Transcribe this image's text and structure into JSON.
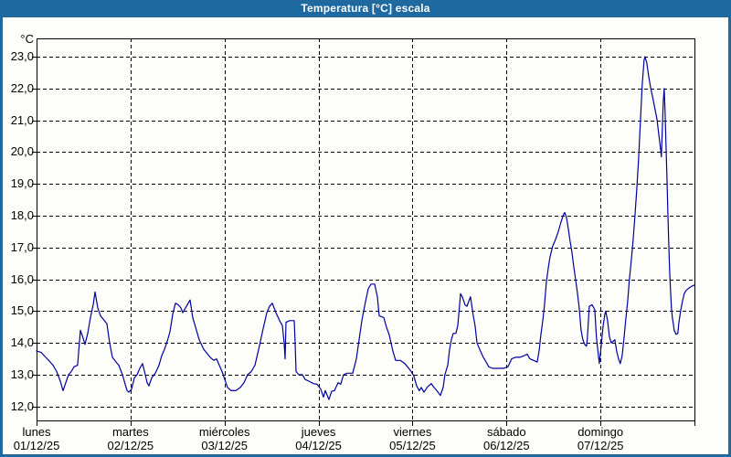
{
  "window": {
    "title": "Temperatura [°C] escala",
    "titlebar_color": "#1e69a0",
    "border_color": "#1e69a0",
    "plot_background": "#fdfdfa",
    "axis_color": "#000000"
  },
  "chart_data": {
    "type": "line",
    "title": "Temperatura [°C] escala",
    "ylabel_unit": "°C",
    "ylim": [
      12.0,
      23.0
    ],
    "y_tick_step": 1.0,
    "y_tick_labels": [
      "23,0",
      "22,0",
      "21,0",
      "20,0",
      "19,0",
      "18,0",
      "17,0",
      "16,0",
      "15,0",
      "14,0",
      "13,0",
      "12,0"
    ],
    "x_range_days": [
      0,
      7
    ],
    "grid": "dashed",
    "legend": "none",
    "x_axis_days": [
      {
        "day": "lunes",
        "date": "01/12/25"
      },
      {
        "day": "martes",
        "date": "02/12/25"
      },
      {
        "day": "miércoles",
        "date": "03/12/25"
      },
      {
        "day": "jueves",
        "date": "04/12/25"
      },
      {
        "day": "viernes",
        "date": "05/12/25"
      },
      {
        "day": "sábado",
        "date": "06/12/25"
      },
      {
        "day": "domingo",
        "date": "07/12/25"
      }
    ],
    "series": [
      {
        "name": "Temperatura",
        "color": "#0000a0",
        "points": [
          [
            0.0,
            13.75
          ],
          [
            0.049,
            13.7
          ],
          [
            0.097,
            13.55
          ],
          [
            0.146,
            13.4
          ],
          [
            0.175,
            13.3
          ],
          [
            0.214,
            13.1
          ],
          [
            0.253,
            12.8
          ],
          [
            0.282,
            12.5
          ],
          [
            0.311,
            12.75
          ],
          [
            0.34,
            13.0
          ],
          [
            0.369,
            13.1
          ],
          [
            0.399,
            13.25
          ],
          [
            0.437,
            13.3
          ],
          [
            0.467,
            14.4
          ],
          [
            0.496,
            14.15
          ],
          [
            0.515,
            13.95
          ],
          [
            0.544,
            14.3
          ],
          [
            0.574,
            14.8
          ],
          [
            0.603,
            15.2
          ],
          [
            0.622,
            15.6
          ],
          [
            0.651,
            15.1
          ],
          [
            0.681,
            14.85
          ],
          [
            0.71,
            14.75
          ],
          [
            0.749,
            14.6
          ],
          [
            0.778,
            14.0
          ],
          [
            0.807,
            13.55
          ],
          [
            0.846,
            13.4
          ],
          [
            0.875,
            13.3
          ],
          [
            0.914,
            13.0
          ],
          [
            0.943,
            12.7
          ],
          [
            0.963,
            12.5
          ],
          [
            0.982,
            12.45
          ],
          [
            1.011,
            12.55
          ],
          [
            1.04,
            12.9
          ],
          [
            1.069,
            13.0
          ],
          [
            1.099,
            13.2
          ],
          [
            1.128,
            13.35
          ],
          [
            1.157,
            13.0
          ],
          [
            1.176,
            12.75
          ],
          [
            1.196,
            12.65
          ],
          [
            1.225,
            12.9
          ],
          [
            1.264,
            13.05
          ],
          [
            1.303,
            13.3
          ],
          [
            1.332,
            13.6
          ],
          [
            1.361,
            13.8
          ],
          [
            1.39,
            14.05
          ],
          [
            1.419,
            14.35
          ],
          [
            1.449,
            14.9
          ],
          [
            1.478,
            15.25
          ],
          [
            1.507,
            15.2
          ],
          [
            1.536,
            15.1
          ],
          [
            1.556,
            14.95
          ],
          [
            1.585,
            15.1
          ],
          [
            1.614,
            15.25
          ],
          [
            1.633,
            15.35
          ],
          [
            1.662,
            14.8
          ],
          [
            1.701,
            14.4
          ],
          [
            1.731,
            14.1
          ],
          [
            1.779,
            13.8
          ],
          [
            1.847,
            13.55
          ],
          [
            1.886,
            13.45
          ],
          [
            1.915,
            13.5
          ],
          [
            1.944,
            13.3
          ],
          [
            1.974,
            13.1
          ],
          [
            2.003,
            12.85
          ],
          [
            2.032,
            12.6
          ],
          [
            2.071,
            12.5
          ],
          [
            2.12,
            12.5
          ],
          [
            2.168,
            12.6
          ],
          [
            2.207,
            12.75
          ],
          [
            2.246,
            13.0
          ],
          [
            2.285,
            13.1
          ],
          [
            2.324,
            13.3
          ],
          [
            2.363,
            13.8
          ],
          [
            2.411,
            14.45
          ],
          [
            2.45,
            14.95
          ],
          [
            2.479,
            15.15
          ],
          [
            2.508,
            15.25
          ],
          [
            2.547,
            14.95
          ],
          [
            2.586,
            14.7
          ],
          [
            2.615,
            14.55
          ],
          [
            2.635,
            14.0
          ],
          [
            2.644,
            13.5
          ],
          [
            2.654,
            14.65
          ],
          [
            2.693,
            14.7
          ],
          [
            2.742,
            14.7
          ],
          [
            2.751,
            14.0
          ],
          [
            2.761,
            13.1
          ],
          [
            2.79,
            13.0
          ],
          [
            2.829,
            13.0
          ],
          [
            2.858,
            12.85
          ],
          [
            2.897,
            12.8
          ],
          [
            2.946,
            12.72
          ],
          [
            2.985,
            12.7
          ],
          [
            3.024,
            12.55
          ],
          [
            3.053,
            12.3
          ],
          [
            3.072,
            12.5
          ],
          [
            3.111,
            12.22
          ],
          [
            3.14,
            12.48
          ],
          [
            3.169,
            12.5
          ],
          [
            3.208,
            12.75
          ],
          [
            3.237,
            12.7
          ],
          [
            3.266,
            13.0
          ],
          [
            3.305,
            13.05
          ],
          [
            3.364,
            13.05
          ],
          [
            3.403,
            13.5
          ],
          [
            3.432,
            14.1
          ],
          [
            3.461,
            14.7
          ],
          [
            3.5,
            15.3
          ],
          [
            3.529,
            15.7
          ],
          [
            3.558,
            15.85
          ],
          [
            3.597,
            15.85
          ],
          [
            3.626,
            15.45
          ],
          [
            3.646,
            14.85
          ],
          [
            3.694,
            14.8
          ],
          [
            3.723,
            14.5
          ],
          [
            3.753,
            14.25
          ],
          [
            3.791,
            13.75
          ],
          [
            3.821,
            13.45
          ],
          [
            3.869,
            13.45
          ],
          [
            3.918,
            13.35
          ],
          [
            3.947,
            13.25
          ],
          [
            3.986,
            13.1
          ],
          [
            4.015,
            12.95
          ],
          [
            4.044,
            12.65
          ],
          [
            4.073,
            12.5
          ],
          [
            4.093,
            12.6
          ],
          [
            4.122,
            12.45
          ],
          [
            4.161,
            12.62
          ],
          [
            4.2,
            12.72
          ],
          [
            4.229,
            12.6
          ],
          [
            4.258,
            12.5
          ],
          [
            4.297,
            12.35
          ],
          [
            4.326,
            12.6
          ],
          [
            4.345,
            13.0
          ],
          [
            4.375,
            13.3
          ],
          [
            4.394,
            13.8
          ],
          [
            4.414,
            14.1
          ],
          [
            4.433,
            14.3
          ],
          [
            4.462,
            14.3
          ],
          [
            4.482,
            14.55
          ],
          [
            4.501,
            15.2
          ],
          [
            4.511,
            15.55
          ],
          [
            4.53,
            15.45
          ],
          [
            4.559,
            15.2
          ],
          [
            4.579,
            15.15
          ],
          [
            4.598,
            15.3
          ],
          [
            4.617,
            15.45
          ],
          [
            4.647,
            14.85
          ],
          [
            4.666,
            14.55
          ],
          [
            4.686,
            14.0
          ],
          [
            4.715,
            13.8
          ],
          [
            4.753,
            13.55
          ],
          [
            4.783,
            13.4
          ],
          [
            4.812,
            13.25
          ],
          [
            4.851,
            13.2
          ],
          [
            4.909,
            13.2
          ],
          [
            4.967,
            13.2
          ],
          [
            5.016,
            13.25
          ],
          [
            5.055,
            13.5
          ],
          [
            5.094,
            13.55
          ],
          [
            5.142,
            13.55
          ],
          [
            5.191,
            13.6
          ],
          [
            5.22,
            13.65
          ],
          [
            5.249,
            13.5
          ],
          [
            5.288,
            13.45
          ],
          [
            5.327,
            13.4
          ],
          [
            5.347,
            13.75
          ],
          [
            5.366,
            14.25
          ],
          [
            5.386,
            14.7
          ],
          [
            5.405,
            15.2
          ],
          [
            5.424,
            15.9
          ],
          [
            5.444,
            16.35
          ],
          [
            5.463,
            16.7
          ],
          [
            5.492,
            17.05
          ],
          [
            5.521,
            17.25
          ],
          [
            5.551,
            17.5
          ],
          [
            5.58,
            17.8
          ],
          [
            5.609,
            18.05
          ],
          [
            5.619,
            18.1
          ],
          [
            5.638,
            17.95
          ],
          [
            5.657,
            17.6
          ],
          [
            5.677,
            17.2
          ],
          [
            5.696,
            16.85
          ],
          [
            5.716,
            16.4
          ],
          [
            5.735,
            16.0
          ],
          [
            5.754,
            15.6
          ],
          [
            5.774,
            15.1
          ],
          [
            5.793,
            14.4
          ],
          [
            5.813,
            14.1
          ],
          [
            5.832,
            13.95
          ],
          [
            5.852,
            13.9
          ],
          [
            5.861,
            14.15
          ],
          [
            5.881,
            15.15
          ],
          [
            5.91,
            15.2
          ],
          [
            5.939,
            15.05
          ],
          [
            5.958,
            14.15
          ],
          [
            5.978,
            13.6
          ],
          [
            5.988,
            13.35
          ],
          [
            6.007,
            13.9
          ],
          [
            6.027,
            14.5
          ],
          [
            6.046,
            14.9
          ],
          [
            6.056,
            15.0
          ],
          [
            6.075,
            14.7
          ],
          [
            6.095,
            14.2
          ],
          [
            6.114,
            14.0
          ],
          [
            6.133,
            14.05
          ],
          [
            6.153,
            14.1
          ],
          [
            6.172,
            13.75
          ],
          [
            6.192,
            13.5
          ],
          [
            6.211,
            13.35
          ],
          [
            6.231,
            13.6
          ],
          [
            6.25,
            14.15
          ],
          [
            6.27,
            14.75
          ],
          [
            6.289,
            15.3
          ],
          [
            6.308,
            16.0
          ],
          [
            6.328,
            16.6
          ],
          [
            6.347,
            17.2
          ],
          [
            6.367,
            18.0
          ],
          [
            6.386,
            18.8
          ],
          [
            6.406,
            19.8
          ],
          [
            6.425,
            21.0
          ],
          [
            6.444,
            22.1
          ],
          [
            6.464,
            22.9
          ],
          [
            6.474,
            23.0
          ],
          [
            6.493,
            22.8
          ],
          [
            6.512,
            22.4
          ],
          [
            6.532,
            22.05
          ],
          [
            6.561,
            21.65
          ],
          [
            6.58,
            21.35
          ],
          [
            6.6,
            21.05
          ],
          [
            6.619,
            20.6
          ],
          [
            6.639,
            20.1
          ],
          [
            6.648,
            19.85
          ],
          [
            6.658,
            20.7
          ],
          [
            6.668,
            21.6
          ],
          [
            6.678,
            22.0
          ],
          [
            6.687,
            21.3
          ],
          [
            6.697,
            20.3
          ],
          [
            6.707,
            19.2
          ],
          [
            6.717,
            18.1
          ],
          [
            6.726,
            17.2
          ],
          [
            6.736,
            16.3
          ],
          [
            6.746,
            15.6
          ],
          [
            6.755,
            15.1
          ],
          [
            6.765,
            14.8
          ],
          [
            6.775,
            14.6
          ],
          [
            6.784,
            14.4
          ],
          [
            6.804,
            14.27
          ],
          [
            6.823,
            14.3
          ],
          [
            6.833,
            14.6
          ],
          [
            6.852,
            15.0
          ],
          [
            6.872,
            15.3
          ],
          [
            6.891,
            15.55
          ],
          [
            6.911,
            15.65
          ],
          [
            6.94,
            15.72
          ],
          [
            6.969,
            15.78
          ],
          [
            6.998,
            15.82
          ]
        ]
      }
    ]
  }
}
